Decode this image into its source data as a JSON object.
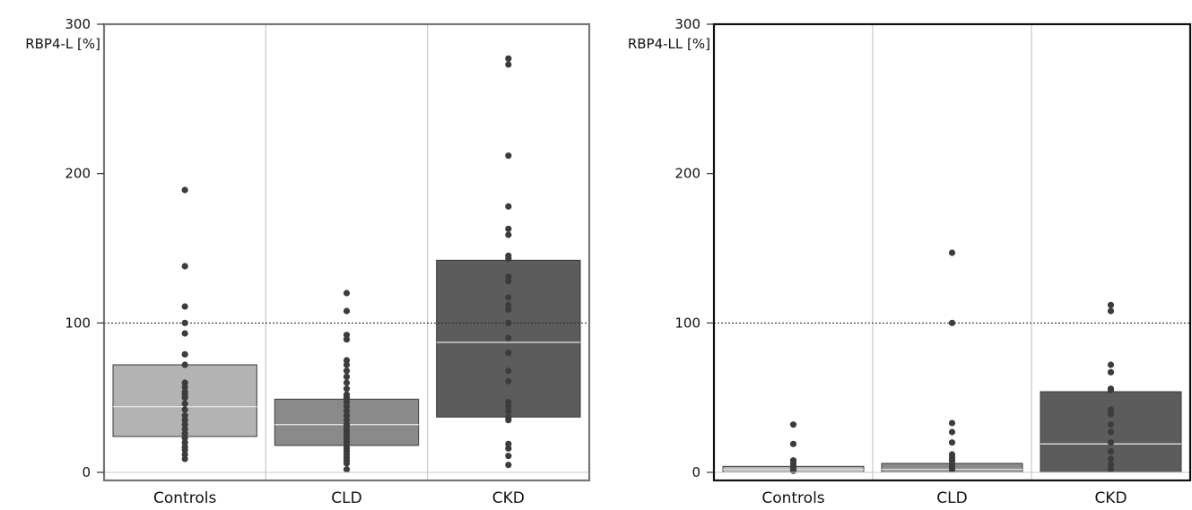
{
  "chart_data": [
    {
      "type": "boxplot",
      "ylabel": "RBP4-L [%]",
      "ylim": [
        0,
        300
      ],
      "y_ticks": [
        0,
        100,
        200,
        300
      ],
      "reference_line": 100,
      "grid": false,
      "categories": [
        "Controls",
        "CLD",
        "CKD"
      ],
      "colors": [
        "#b3b3b3",
        "#8a8a8a",
        "#5c5c5c"
      ],
      "boxes": [
        {
          "q1": 24,
          "median": 44,
          "q3": 72
        },
        {
          "q1": 18,
          "median": 32,
          "q3": 49
        },
        {
          "q1": 37,
          "median": 87,
          "q3": 142
        }
      ],
      "points": [
        [
          189,
          138,
          111,
          100,
          93,
          79,
          72,
          60,
          57,
          54,
          52,
          50,
          46,
          42,
          38,
          35,
          32,
          29,
          26,
          23,
          20,
          17,
          15,
          12,
          9
        ],
        [
          120,
          108,
          92,
          89,
          75,
          72,
          68,
          64,
          60,
          56,
          52,
          50,
          47,
          44,
          41,
          38,
          35,
          32,
          30,
          28,
          26,
          24,
          22,
          20,
          18,
          16,
          14,
          12,
          10,
          8,
          6,
          2
        ],
        [
          277,
          273,
          212,
          178,
          163,
          159,
          145,
          143,
          131,
          128,
          117,
          112,
          109,
          100,
          90,
          80,
          68,
          61,
          47,
          44,
          41,
          37,
          35,
          19,
          16,
          11,
          5
        ]
      ]
    },
    {
      "type": "boxplot",
      "ylabel": "RBP4-LL [%]",
      "ylim": [
        0,
        300
      ],
      "y_ticks": [
        0,
        100,
        200,
        300
      ],
      "reference_line": 100,
      "grid": false,
      "categories": [
        "Controls",
        "CLD",
        "CKD"
      ],
      "colors": [
        "#b3b3b3",
        "#8a8a8a",
        "#5c5c5c"
      ],
      "boxes": [
        {
          "q1": 0,
          "median": 2,
          "q3": 4
        },
        {
          "q1": 0,
          "median": 2,
          "q3": 6
        },
        {
          "q1": 0,
          "median": 19,
          "q3": 54
        }
      ],
      "points": [
        [
          32,
          19,
          8,
          6,
          4,
          2,
          1
        ],
        [
          147,
          100,
          33,
          27,
          20,
          12,
          10,
          8,
          6,
          4,
          2
        ],
        [
          112,
          108,
          72,
          67,
          56,
          55,
          42,
          39,
          32,
          27,
          20,
          14,
          9,
          5,
          2
        ]
      ]
    }
  ]
}
